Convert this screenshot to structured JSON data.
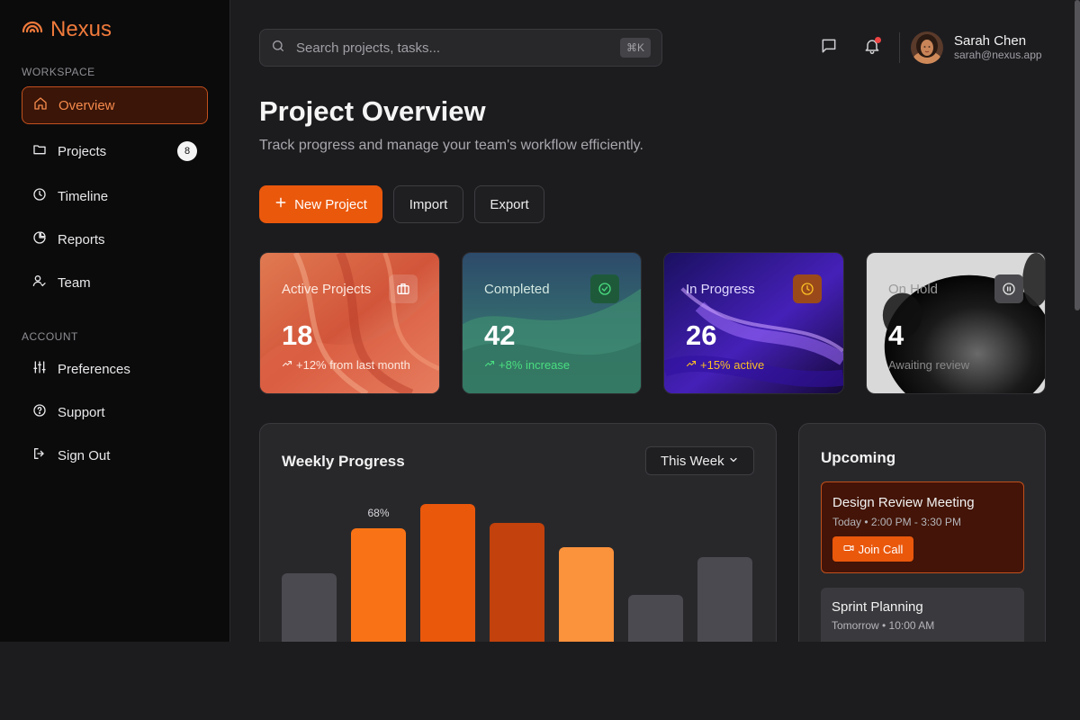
{
  "brand": {
    "name": "Nexus",
    "accent": "#f07a3b"
  },
  "sidebar": {
    "section_workspace": "WORKSPACE",
    "section_account": "ACCOUNT",
    "items": [
      {
        "label": "Overview",
        "icon": "home-icon",
        "active": true
      },
      {
        "label": "Projects",
        "icon": "folder-icon",
        "badge": "8"
      },
      {
        "label": "Timeline",
        "icon": "clock-icon"
      },
      {
        "label": "Reports",
        "icon": "pie-chart-icon"
      },
      {
        "label": "Team",
        "icon": "user-check-icon"
      }
    ],
    "account_items": [
      {
        "label": "Preferences",
        "icon": "sliders-icon"
      },
      {
        "label": "Support",
        "icon": "help-circle-icon"
      },
      {
        "label": "Sign Out",
        "icon": "logout-icon"
      }
    ]
  },
  "header": {
    "search_placeholder": "Search projects, tasks...",
    "search_shortcut": "⌘K",
    "user": {
      "name": "Sarah Chen",
      "email": "sarah@nexus.app"
    }
  },
  "page": {
    "title": "Project Overview",
    "subtitle": "Track progress and manage your team's workflow efficiently.",
    "new_project": "New Project",
    "import": "Import",
    "export": "Export"
  },
  "stats": [
    {
      "label": "Active Projects",
      "value": "18",
      "note": "+12% from last month",
      "icon": "briefcase-icon"
    },
    {
      "label": "Completed",
      "value": "42",
      "note": "+8% increase",
      "icon": "check-circle-icon"
    },
    {
      "label": "In Progress",
      "value": "26",
      "note": "+15% active",
      "icon": "clock-icon"
    },
    {
      "label": "On Hold",
      "value": "4",
      "note": "Awaiting review",
      "icon": "pause-circle-icon"
    }
  ],
  "weekly": {
    "title": "Weekly Progress",
    "range": "This Week",
    "highlight_label": "68%"
  },
  "chart_data": {
    "type": "bar",
    "title": "Weekly Progress",
    "values": [
      0.29,
      0.48,
      0.58,
      0.5,
      0.4,
      0.2,
      0.36
    ],
    "colors": [
      "#4a4a50",
      "#f97316",
      "#ea580c",
      "#c2410c",
      "#fb923c",
      "#4a4a50",
      "#4a4a50"
    ],
    "data_labels": [
      "",
      "68%",
      "",
      "",
      "",
      "",
      ""
    ]
  },
  "upcoming": {
    "title": "Upcoming",
    "events": [
      {
        "title": "Design Review Meeting",
        "time": "Today • 2:00 PM - 3:30 PM",
        "action": "Join Call"
      },
      {
        "title": "Sprint Planning",
        "time": "Tomorrow • 10:00 AM"
      }
    ]
  }
}
